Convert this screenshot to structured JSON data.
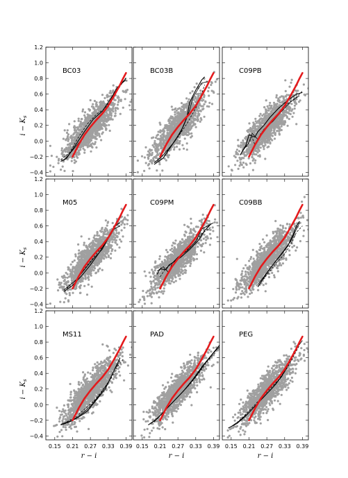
{
  "figure": {
    "ylabel": "i − K",
    "ylabel_sub": "s",
    "xlabel": "r − i",
    "x_ticks": [
      "0.15",
      "0.21",
      "0.27",
      "0.33",
      "0.39"
    ],
    "x_tick_values": [
      0.15,
      0.21,
      0.27,
      0.33,
      0.39
    ],
    "y_ticks": [
      "1.2",
      "1.0",
      "0.8",
      "0.6",
      "0.4",
      "0.2",
      "0.0",
      "−0.2",
      "−0.4"
    ],
    "y_tick_values": [
      1.2,
      1.0,
      0.8,
      0.6,
      0.4,
      0.2,
      0.0,
      -0.2,
      -0.4
    ],
    "colors": {
      "scatter": "#a0a0a0",
      "observed_fit": "#e41a1c",
      "model_tracks": "#000000"
    }
  },
  "chart_data": [
    {
      "type": "scatter",
      "panel_label": "BC03",
      "xlim": [
        0.12,
        0.41
      ],
      "ylim": [
        -0.45,
        1.2
      ],
      "red_curve": {
        "x": [
          0.21,
          0.23,
          0.25,
          0.27,
          0.29,
          0.31,
          0.33,
          0.35,
          0.37,
          0.38,
          0.39
        ],
        "y": [
          -0.2,
          -0.05,
          0.08,
          0.18,
          0.27,
          0.35,
          0.45,
          0.58,
          0.72,
          0.8,
          0.87
        ]
      },
      "model_tracks": [
        {
          "x": [
            0.17,
            0.19,
            0.22,
            0.25,
            0.28,
            0.31,
            0.34,
            0.36,
            0.38,
            0.39
          ],
          "y": [
            -0.26,
            -0.22,
            -0.05,
            0.12,
            0.28,
            0.38,
            0.55,
            0.68,
            0.76,
            0.8
          ]
        },
        {
          "x": [
            0.18,
            0.21,
            0.24,
            0.27,
            0.3,
            0.33,
            0.35,
            0.37,
            0.39
          ],
          "y": [
            -0.25,
            -0.12,
            0.02,
            0.18,
            0.3,
            0.45,
            0.6,
            0.72,
            0.78
          ]
        },
        {
          "x": [
            0.17,
            0.2,
            0.23,
            0.26,
            0.29,
            0.32,
            0.35,
            0.37,
            0.39
          ],
          "y": [
            -0.24,
            -0.15,
            0.05,
            0.22,
            0.34,
            0.42,
            0.58,
            0.7,
            0.81
          ]
        }
      ]
    },
    {
      "type": "scatter",
      "panel_label": "BC03B",
      "xlim": [
        0.12,
        0.41
      ],
      "ylim": [
        -0.45,
        1.2
      ],
      "red_curve": {
        "x": [
          0.21,
          0.23,
          0.25,
          0.27,
          0.29,
          0.31,
          0.33,
          0.35,
          0.37,
          0.38,
          0.39
        ],
        "y": [
          -0.2,
          -0.05,
          0.08,
          0.18,
          0.27,
          0.35,
          0.45,
          0.58,
          0.72,
          0.8,
          0.87
        ]
      },
      "model_tracks": [
        {
          "x": [
            0.19,
            0.22,
            0.25,
            0.28,
            0.3,
            0.31,
            0.33,
            0.35,
            0.36
          ],
          "y": [
            -0.3,
            -0.22,
            -0.05,
            0.12,
            0.3,
            0.5,
            0.65,
            0.78,
            0.82
          ]
        },
        {
          "x": [
            0.19,
            0.22,
            0.26,
            0.29,
            0.31,
            0.32,
            0.34,
            0.35,
            0.37
          ],
          "y": [
            -0.28,
            -0.18,
            0.0,
            0.2,
            0.4,
            0.55,
            0.68,
            0.74,
            0.76
          ]
        },
        {
          "x": [
            0.2,
            0.24,
            0.27,
            0.3,
            0.33,
            0.35,
            0.36
          ],
          "y": [
            -0.26,
            -0.1,
            0.05,
            0.22,
            0.42,
            0.6,
            0.72
          ]
        }
      ]
    },
    {
      "type": "scatter",
      "panel_label": "C09PB",
      "xlim": [
        0.12,
        0.41
      ],
      "ylim": [
        -0.45,
        1.2
      ],
      "red_curve": {
        "x": [
          0.21,
          0.23,
          0.25,
          0.27,
          0.29,
          0.31,
          0.33,
          0.35,
          0.37,
          0.38,
          0.39
        ],
        "y": [
          -0.2,
          -0.05,
          0.08,
          0.18,
          0.27,
          0.35,
          0.45,
          0.58,
          0.72,
          0.8,
          0.87
        ]
      },
      "model_tracks": [
        {
          "x": [
            0.18,
            0.2,
            0.21,
            0.23,
            0.24,
            0.26,
            0.28,
            0.31,
            0.34,
            0.37,
            0.39
          ],
          "y": [
            -0.18,
            -0.05,
            0.08,
            0.05,
            0.12,
            0.2,
            0.3,
            0.42,
            0.52,
            0.6,
            0.62
          ]
        },
        {
          "x": [
            0.19,
            0.21,
            0.22,
            0.24,
            0.26,
            0.29,
            0.32,
            0.35,
            0.38
          ],
          "y": [
            -0.12,
            -0.02,
            0.1,
            0.02,
            0.15,
            0.25,
            0.38,
            0.5,
            0.58
          ]
        },
        {
          "x": [
            0.2,
            0.22,
            0.23,
            0.25,
            0.28,
            0.31,
            0.34,
            0.37,
            0.39
          ],
          "y": [
            -0.08,
            0.05,
            -0.05,
            0.1,
            0.22,
            0.36,
            0.48,
            0.56,
            0.64
          ]
        }
      ]
    },
    {
      "type": "scatter",
      "panel_label": "M05",
      "xlim": [
        0.12,
        0.41
      ],
      "ylim": [
        -0.45,
        1.2
      ],
      "red_curve": {
        "x": [
          0.21,
          0.23,
          0.25,
          0.27,
          0.29,
          0.31,
          0.33,
          0.35,
          0.37,
          0.38,
          0.39
        ],
        "y": [
          -0.2,
          -0.05,
          0.08,
          0.18,
          0.27,
          0.35,
          0.45,
          0.58,
          0.72,
          0.8,
          0.87
        ]
      },
      "model_tracks": [
        {
          "x": [
            0.18,
            0.21,
            0.24,
            0.27,
            0.3,
            0.32,
            0.34,
            0.35,
            0.37
          ],
          "y": [
            -0.24,
            -0.16,
            -0.04,
            0.1,
            0.26,
            0.38,
            0.5,
            0.6,
            0.64
          ]
        },
        {
          "x": [
            0.18,
            0.22,
            0.25,
            0.28,
            0.31,
            0.33,
            0.35,
            0.37
          ],
          "y": [
            -0.22,
            -0.1,
            0.04,
            0.18,
            0.3,
            0.44,
            0.56,
            0.6
          ]
        },
        {
          "x": [
            0.19,
            0.23,
            0.26,
            0.29,
            0.32,
            0.34,
            0.36
          ],
          "y": [
            -0.2,
            -0.06,
            0.1,
            0.24,
            0.38,
            0.52,
            0.62
          ]
        }
      ]
    },
    {
      "type": "scatter",
      "panel_label": "C09PM",
      "xlim": [
        0.12,
        0.41
      ],
      "ylim": [
        -0.45,
        1.2
      ],
      "red_curve": {
        "x": [
          0.21,
          0.23,
          0.25,
          0.27,
          0.29,
          0.31,
          0.33,
          0.35,
          0.37,
          0.38,
          0.39
        ],
        "y": [
          -0.2,
          -0.05,
          0.08,
          0.18,
          0.27,
          0.35,
          0.45,
          0.58,
          0.72,
          0.8,
          0.87
        ]
      },
      "model_tracks": [
        {
          "x": [
            0.2,
            0.21,
            0.23,
            0.24,
            0.26,
            0.28,
            0.31,
            0.34,
            0.36,
            0.38
          ],
          "y": [
            -0.02,
            0.05,
            0.04,
            0.1,
            0.15,
            0.2,
            0.3,
            0.42,
            0.54,
            0.62
          ]
        },
        {
          "x": [
            0.2,
            0.22,
            0.24,
            0.25,
            0.27,
            0.3,
            0.33,
            0.35,
            0.37,
            0.39
          ],
          "y": [
            0.02,
            0.08,
            0.0,
            0.12,
            0.2,
            0.28,
            0.4,
            0.56,
            0.6,
            0.64
          ]
        },
        {
          "x": [
            0.21,
            0.23,
            0.25,
            0.28,
            0.32,
            0.35,
            0.38
          ],
          "y": [
            -0.05,
            0.06,
            0.12,
            0.22,
            0.36,
            0.5,
            0.58
          ]
        }
      ]
    },
    {
      "type": "scatter",
      "panel_label": "C09BB",
      "xlim": [
        0.12,
        0.41
      ],
      "ylim": [
        -0.45,
        1.2
      ],
      "red_curve": {
        "x": [
          0.21,
          0.23,
          0.25,
          0.27,
          0.29,
          0.31,
          0.33,
          0.35,
          0.37,
          0.38,
          0.39
        ],
        "y": [
          -0.2,
          -0.05,
          0.08,
          0.18,
          0.27,
          0.35,
          0.45,
          0.58,
          0.72,
          0.8,
          0.87
        ]
      },
      "model_tracks": [
        {
          "x": [
            0.24,
            0.26,
            0.28,
            0.3,
            0.32,
            0.34,
            0.36,
            0.37,
            0.38
          ],
          "y": [
            -0.18,
            -0.06,
            0.05,
            0.15,
            0.24,
            0.34,
            0.5,
            0.6,
            0.66
          ]
        },
        {
          "x": [
            0.24,
            0.27,
            0.29,
            0.31,
            0.33,
            0.35,
            0.37,
            0.38
          ],
          "y": [
            -0.15,
            0.0,
            0.1,
            0.2,
            0.3,
            0.4,
            0.56,
            0.64
          ]
        },
        {
          "x": [
            0.25,
            0.28,
            0.3,
            0.33,
            0.35,
            0.37,
            0.39
          ],
          "y": [
            -0.12,
            0.02,
            0.12,
            0.24,
            0.36,
            0.52,
            0.6
          ]
        }
      ]
    },
    {
      "type": "scatter",
      "panel_label": "MS11",
      "xlim": [
        0.12,
        0.41
      ],
      "ylim": [
        -0.45,
        1.2
      ],
      "red_curve": {
        "x": [
          0.21,
          0.23,
          0.25,
          0.27,
          0.29,
          0.31,
          0.33,
          0.35,
          0.37,
          0.38,
          0.39
        ],
        "y": [
          -0.2,
          -0.05,
          0.08,
          0.18,
          0.27,
          0.35,
          0.45,
          0.58,
          0.72,
          0.8,
          0.87
        ]
      },
      "model_tracks": [
        {
          "x": [
            0.17,
            0.2,
            0.23,
            0.26,
            0.29,
            0.32,
            0.34,
            0.36,
            0.37
          ],
          "y": [
            -0.26,
            -0.22,
            -0.16,
            -0.08,
            0.06,
            0.2,
            0.36,
            0.52,
            0.6
          ]
        },
        {
          "x": [
            0.17,
            0.21,
            0.24,
            0.27,
            0.3,
            0.33,
            0.35,
            0.37
          ],
          "y": [
            -0.25,
            -0.2,
            -0.12,
            -0.02,
            0.12,
            0.28,
            0.44,
            0.56
          ]
        },
        {
          "x": [
            0.18,
            0.22,
            0.25,
            0.28,
            0.31,
            0.34,
            0.36,
            0.38
          ],
          "y": [
            -0.24,
            -0.16,
            -0.06,
            0.04,
            0.18,
            0.34,
            0.48,
            0.58
          ]
        }
      ]
    },
    {
      "type": "scatter",
      "panel_label": "PAD",
      "xlim": [
        0.12,
        0.41
      ],
      "ylim": [
        -0.45,
        1.2
      ],
      "red_curve": {
        "x": [
          0.21,
          0.23,
          0.25,
          0.27,
          0.29,
          0.31,
          0.33,
          0.35,
          0.37,
          0.38,
          0.39
        ],
        "y": [
          -0.2,
          -0.05,
          0.08,
          0.18,
          0.27,
          0.35,
          0.45,
          0.58,
          0.72,
          0.8,
          0.87
        ]
      },
      "model_tracks": [
        {
          "x": [
            0.17,
            0.2,
            0.23,
            0.26,
            0.29,
            0.32,
            0.35,
            0.38,
            0.41
          ],
          "y": [
            -0.26,
            -0.18,
            -0.06,
            0.06,
            0.18,
            0.32,
            0.48,
            0.62,
            0.76
          ]
        },
        {
          "x": [
            0.18,
            0.21,
            0.24,
            0.27,
            0.3,
            0.33,
            0.36,
            0.39,
            0.41
          ],
          "y": [
            -0.24,
            -0.14,
            -0.02,
            0.1,
            0.22,
            0.36,
            0.52,
            0.66,
            0.74
          ]
        },
        {
          "x": [
            0.19,
            0.22,
            0.25,
            0.28,
            0.31,
            0.34,
            0.37,
            0.4
          ],
          "y": [
            -0.22,
            -0.1,
            0.02,
            0.14,
            0.26,
            0.4,
            0.56,
            0.68
          ]
        }
      ]
    },
    {
      "type": "scatter",
      "panel_label": "PEG",
      "xlim": [
        0.12,
        0.41
      ],
      "ylim": [
        -0.45,
        1.2
      ],
      "red_curve": {
        "x": [
          0.21,
          0.23,
          0.25,
          0.27,
          0.29,
          0.31,
          0.33,
          0.35,
          0.37,
          0.38,
          0.39
        ],
        "y": [
          -0.2,
          -0.05,
          0.08,
          0.18,
          0.27,
          0.35,
          0.45,
          0.58,
          0.72,
          0.8,
          0.87
        ]
      },
      "model_tracks": [
        {
          "x": [
            0.14,
            0.17,
            0.2,
            0.23,
            0.26,
            0.29,
            0.32,
            0.34,
            0.36,
            0.38,
            0.39
          ],
          "y": [
            -0.3,
            -0.24,
            -0.14,
            -0.02,
            0.1,
            0.22,
            0.36,
            0.5,
            0.66,
            0.8,
            0.86
          ]
        },
        {
          "x": [
            0.15,
            0.18,
            0.21,
            0.24,
            0.27,
            0.3,
            0.33,
            0.35,
            0.37,
            0.39
          ],
          "y": [
            -0.28,
            -0.2,
            -0.1,
            0.02,
            0.14,
            0.26,
            0.42,
            0.58,
            0.72,
            0.82
          ]
        },
        {
          "x": [
            0.16,
            0.19,
            0.22,
            0.25,
            0.28,
            0.31,
            0.34,
            0.36,
            0.38
          ],
          "y": [
            -0.26,
            -0.16,
            -0.04,
            0.08,
            0.2,
            0.32,
            0.48,
            0.62,
            0.76
          ]
        }
      ]
    }
  ]
}
